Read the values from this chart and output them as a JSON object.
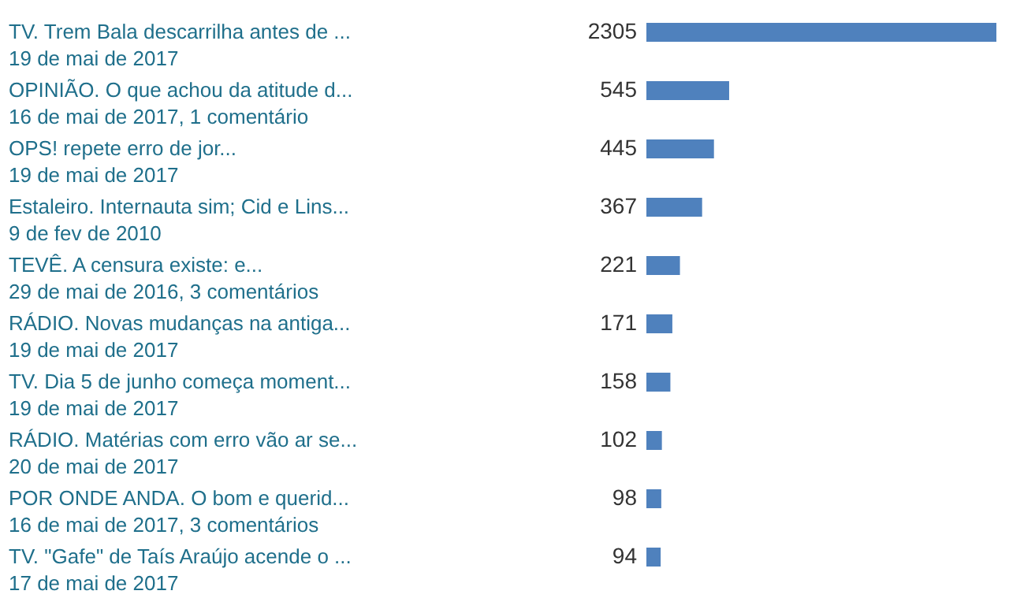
{
  "chart_data": {
    "type": "bar",
    "orientation": "horizontal",
    "data_labels": true,
    "color": "#4f81bd",
    "categories": [
      "TV. Trem Bala descarrilha antes de ...\n19 de mai de 2017",
      "OPINIÃO. O que achou da atitude d...\n16 de mai de 2017, 1 comentário",
      "OPS! repete erro de jor...\n19 de mai de 2017",
      "Estaleiro. Internauta sim; Cid e Lins...\n9 de fev de 2010",
      "TEVÊ. A censura existe: e...\n29 de mai de 2016, 3 comentários",
      "RÁDIO. Novas mudanças na antiga...\n19 de mai de 2017",
      "TV. Dia 5 de junho começa moment...\n19 de mai de 2017",
      "RÁDIO. Matérias com erro vão ar se...\n20 de mai de 2017",
      "POR ONDE ANDA. O bom e querid...\n16 de mai de 2017, 3 comentários",
      "TV. \"Gafe\" de Taís Araújo acende o ...\n17 de mai de 2017"
    ],
    "values": [
      2305,
      545,
      445,
      367,
      221,
      171,
      158,
      102,
      98,
      94
    ]
  }
}
